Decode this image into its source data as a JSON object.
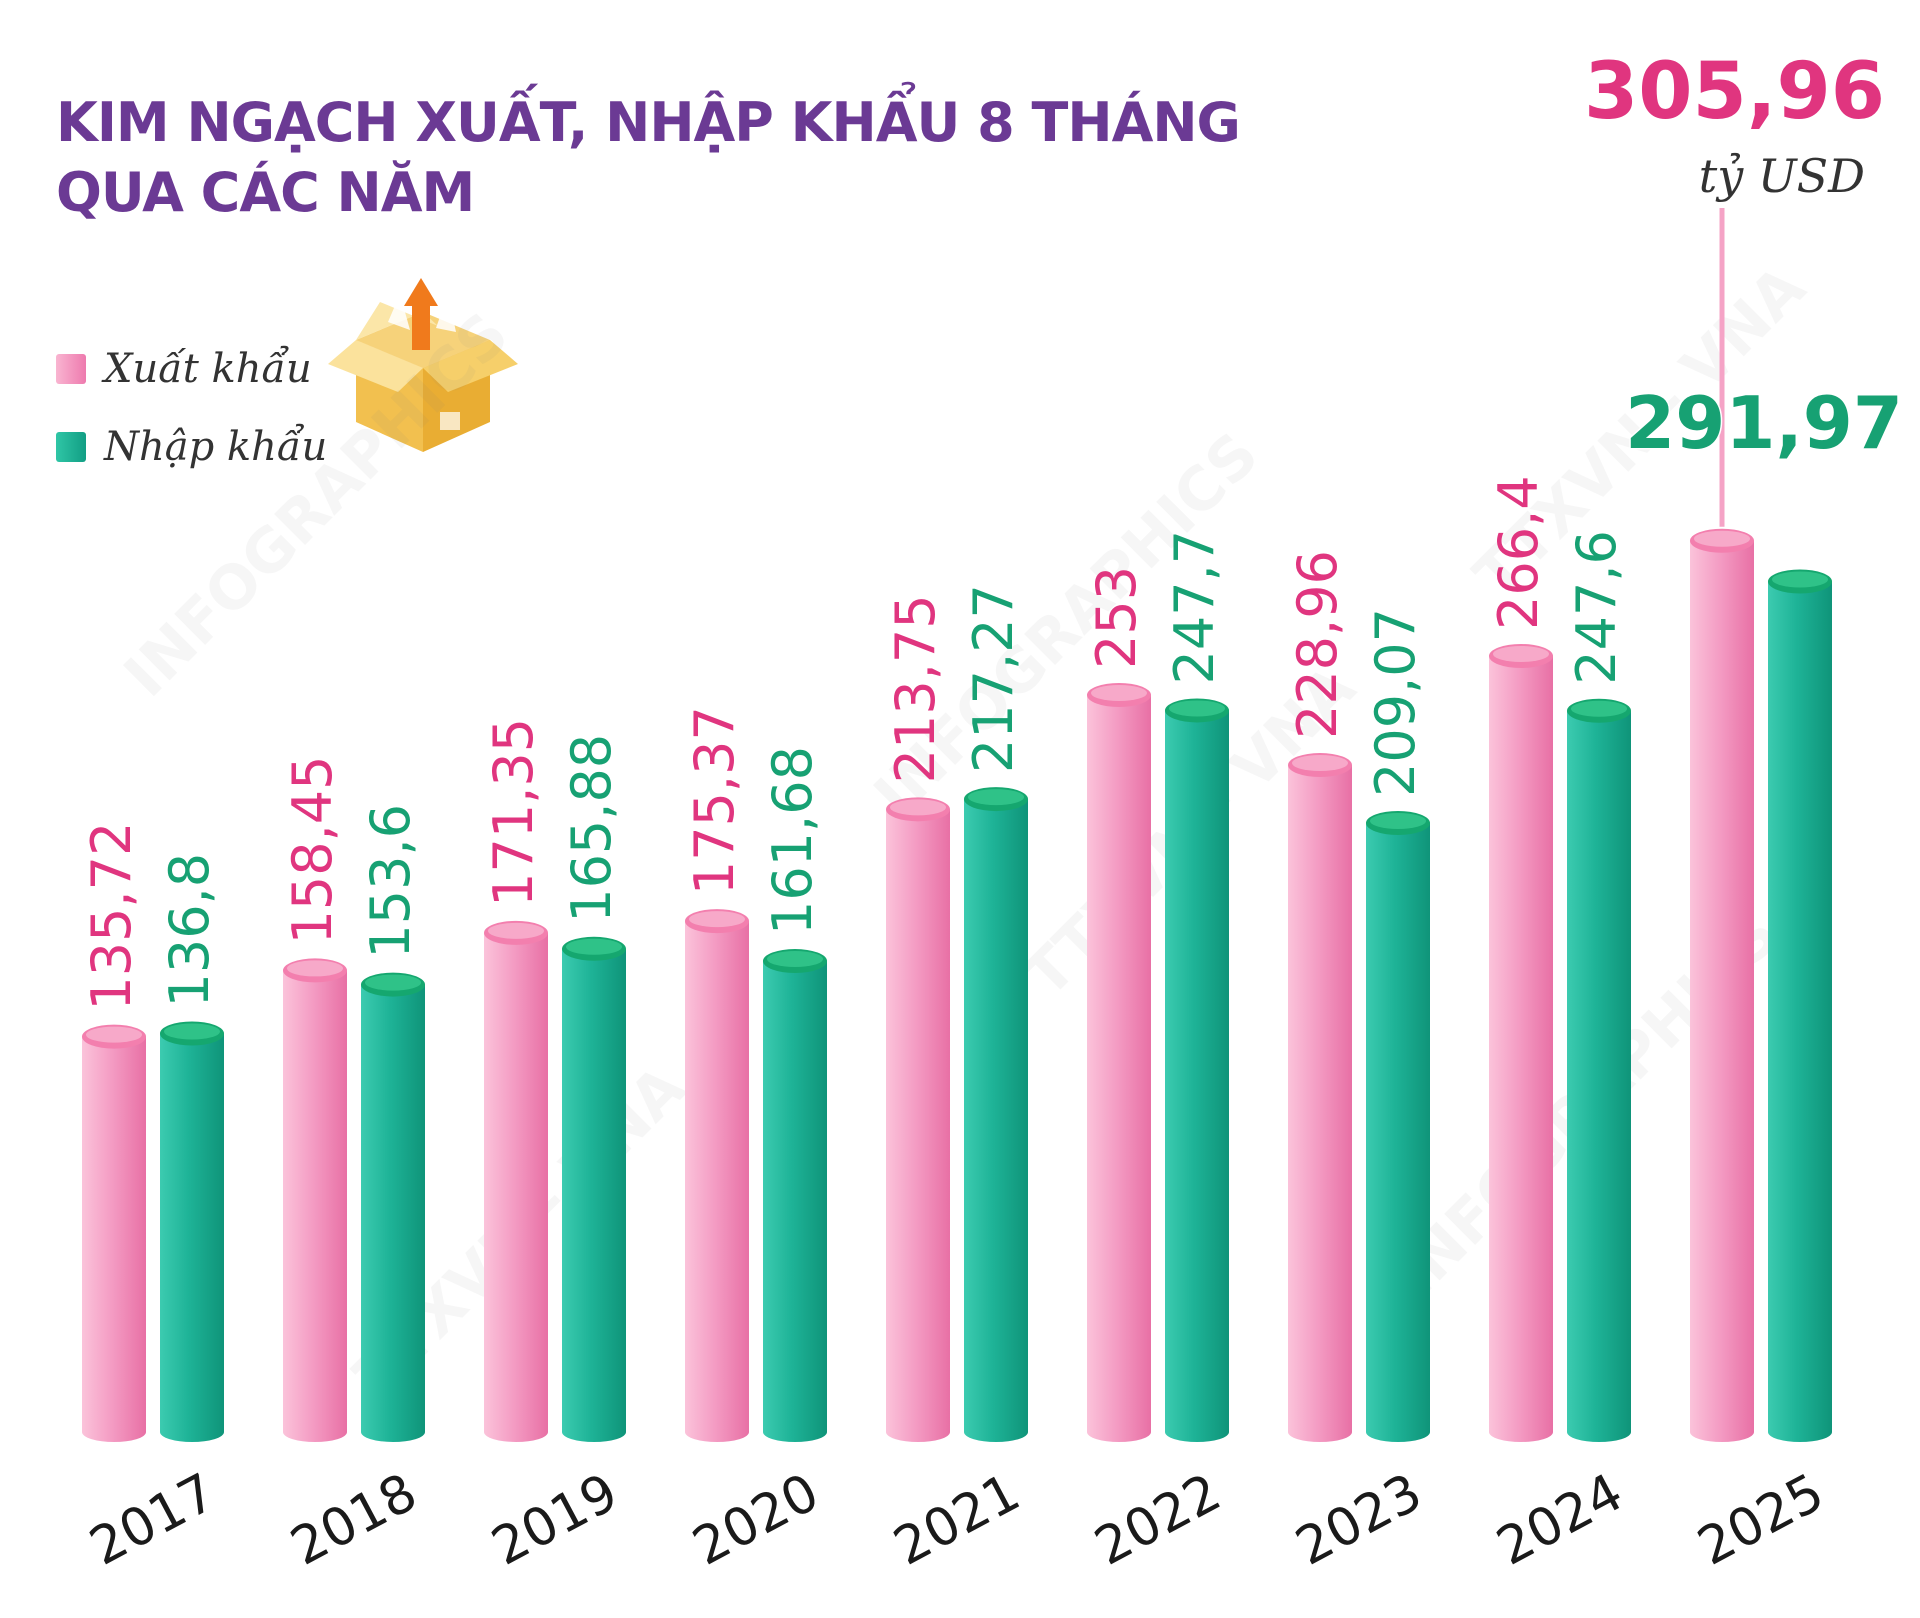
{
  "title_lines": [
    "KIM NGẠCH XUẤT, NHẬP KHẨU 8 THÁNG",
    "QUA CÁC NĂM"
  ],
  "legend": [
    {
      "label": "Xuất khẩu",
      "color": "#ef7fb0"
    },
    {
      "label": "Nhập khẩu",
      "color": "#17a88e"
    }
  ],
  "colors": {
    "export_label": "#e0357f",
    "import_label": "#17a173",
    "title": "#6b3a94"
  },
  "watermarks": [
    "INFOGRAPHICS",
    "TTXVN - VNA"
  ],
  "chart_data": {
    "type": "bar",
    "categories": [
      "2017",
      "2018",
      "2019",
      "2020",
      "2021",
      "2022",
      "2023",
      "2024",
      "2025"
    ],
    "series": [
      {
        "name": "Xuất khẩu",
        "values": [
          135.72,
          158.45,
          171.35,
          175.37,
          213.75,
          253,
          228.96,
          266.4,
          305.96
        ],
        "labels": [
          "135,72",
          "158,45",
          "171,35",
          "175,37",
          "213,75",
          "253",
          "228,96",
          "266,4",
          "305,96"
        ]
      },
      {
        "name": "Nhập khẩu",
        "values": [
          136.8,
          153.6,
          165.88,
          161.68,
          217.27,
          247.7,
          209.07,
          247.6,
          291.97
        ],
        "labels": [
          "136,8",
          "153,6",
          "165,88",
          "161,68",
          "217,27",
          "247,7",
          "209,07",
          "247,6",
          "291,97"
        ]
      }
    ],
    "highlight_unit": "tỷ USD",
    "ylim": [
      0,
      320
    ],
    "grid": false,
    "legend_position": "top-left"
  }
}
